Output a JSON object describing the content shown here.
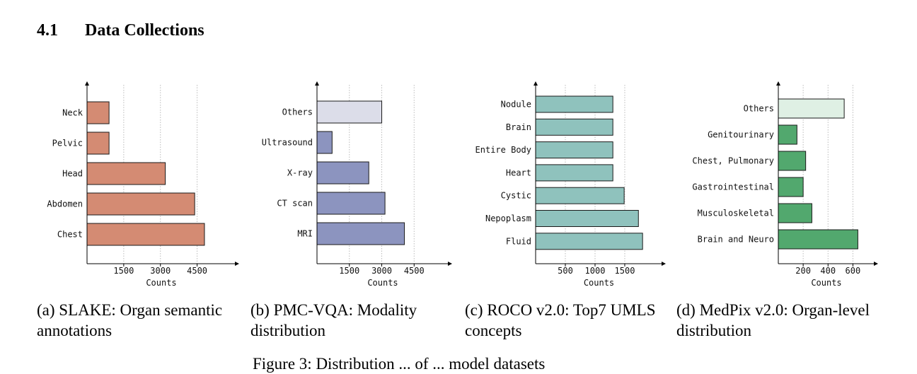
{
  "section": {
    "number": "4.1",
    "title": "Data Collections"
  },
  "figure_caption": "Figure 3: Distribution ... of ... model datasets",
  "chart_data": [
    {
      "type": "bar",
      "orientation": "horizontal",
      "caption": "(a) SLAKE: Organ semantic annotations",
      "categories": [
        "Neck",
        "Pelvic",
        "Head",
        "Abdomen",
        "Chest"
      ],
      "values": [
        900,
        900,
        3200,
        4400,
        4800
      ],
      "xlabel": "Counts",
      "xticks": [
        "1500",
        "3000",
        "4500"
      ],
      "xlim": [
        0,
        5900
      ],
      "color": "#d48b73",
      "grid": "vertical dotted"
    },
    {
      "type": "bar",
      "orientation": "horizontal",
      "caption": "(b) PMC-VQA: Modality distribution",
      "categories": [
        "Others",
        "Ultrasound",
        "X-ray",
        "CT scan",
        "MRI"
      ],
      "values": [
        3000,
        700,
        2400,
        3150,
        4050
      ],
      "xlabel": "Counts",
      "xticks": [
        "1500",
        "3000",
        "4500"
      ],
      "xlim": [
        0,
        5900
      ],
      "colors": [
        "#dcdde9",
        "#8c94bf",
        "#8c94bf",
        "#8c94bf",
        "#8c94bf"
      ],
      "grid": "vertical dotted"
    },
    {
      "type": "bar",
      "orientation": "horizontal",
      "caption": "(c) ROCO v2.0: Top7 UMLS concepts",
      "categories": [
        "Nodule",
        "Brain",
        "Entire Body",
        "Heart",
        "Cystic",
        "Nepoplasm",
        "Fluid"
      ],
      "values": [
        1300,
        1300,
        1300,
        1300,
        1490,
        1730,
        1800
      ],
      "xlabel": "Counts",
      "xticks": [
        "500",
        "1000",
        "1500"
      ],
      "xlim": [
        0,
        2060
      ],
      "color": "#8fc2bd",
      "grid": "vertical dotted"
    },
    {
      "type": "bar",
      "orientation": "horizontal",
      "caption": "(d) MedPix v2.0: Organ-level distribution",
      "categories": [
        "Others",
        "Genitourinary",
        "Chest, Pulmonary",
        "Gastrointestinal",
        "Musculoskeletal",
        "Brain and Neuro"
      ],
      "values": [
        530,
        150,
        220,
        200,
        270,
        640
      ],
      "xlabel": "Counts",
      "xticks": [
        "200",
        "400",
        "600"
      ],
      "xlim": [
        0,
        740
      ],
      "colors": [
        "#dff0e4",
        "#52a86e",
        "#52a86e",
        "#52a86e",
        "#52a86e",
        "#52a86e"
      ],
      "grid": "vertical dotted"
    }
  ]
}
